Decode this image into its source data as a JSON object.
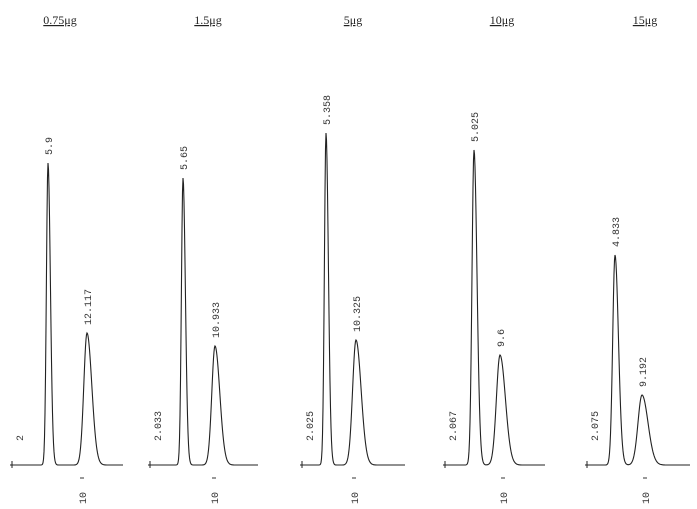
{
  "panels": [
    {
      "title": "0.75μg",
      "start_label": "2",
      "peaks": [
        {
          "label": "5.9"
        },
        {
          "label": "12.117"
        }
      ],
      "axis_tick": "10"
    },
    {
      "title": "1.5μg",
      "start_label": "2.033",
      "peaks": [
        {
          "label": "5.65"
        },
        {
          "label": "10.933"
        }
      ],
      "axis_tick": "10"
    },
    {
      "title": "5μg",
      "start_label": "2.025",
      "peaks": [
        {
          "label": "5.358"
        },
        {
          "label": "10.325"
        }
      ],
      "axis_tick": "10"
    },
    {
      "title": "10μg",
      "start_label": "2.067",
      "peaks": [
        {
          "label": "5.025"
        },
        {
          "label": "9.6"
        }
      ],
      "axis_tick": "10"
    },
    {
      "title": "15μg",
      "start_label": "2.075",
      "peaks": [
        {
          "label": "4.833"
        },
        {
          "label": "9.192"
        }
      ],
      "axis_tick": "10"
    }
  ]
}
